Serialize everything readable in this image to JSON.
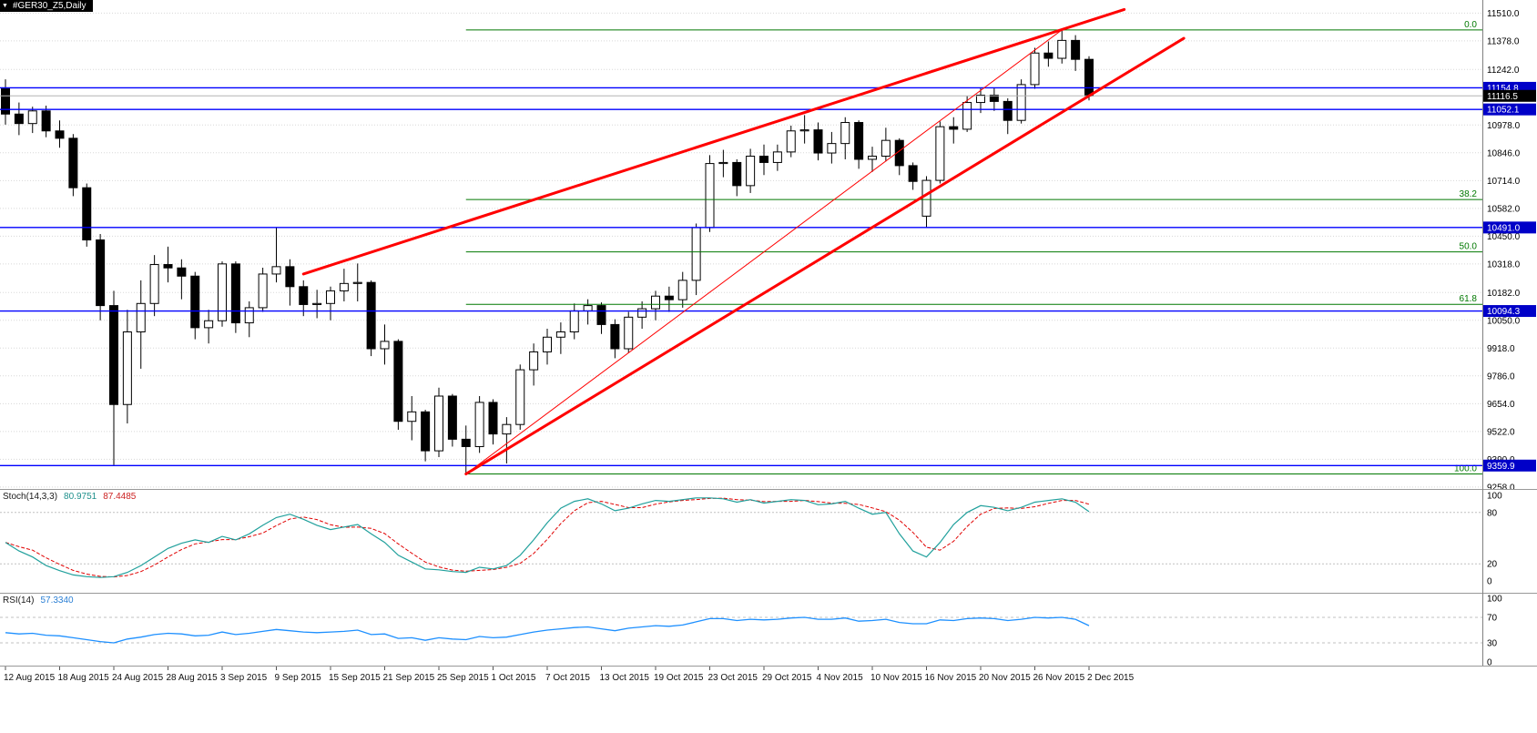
{
  "window": {
    "dropdown_glyph": "▼",
    "title": "#GER30_Z5,Daily"
  },
  "chart_data": {
    "type": "candlestick",
    "symbol": "#GER30_Z5",
    "timeframe": "Daily",
    "price_range_visible": {
      "top": 11572,
      "bottom": 9253
    },
    "colors": {
      "grid": "#d8d8d8",
      "candle_up": "#ffffff",
      "candle_down": "#000000",
      "candle_outline": "#000000",
      "hline": "#0000ff",
      "fib": "#007800",
      "trend": "#ff0000",
      "bid_line": "#b4b4b4",
      "box_line": "#0000c8",
      "box_bid": "#000000",
      "stoch_main": "#20a09c",
      "stoch_signal": "#e00000",
      "rsi_line": "#1e90ff",
      "level": "#c0c0c0"
    },
    "price_axis": {
      "grid_levels": [
        11510.0,
        11378.0,
        11242.0,
        10978.0,
        10846.0,
        10714.0,
        10582.0,
        10450.0,
        10318.0,
        10182.0,
        10050.0,
        9918.0,
        9786.0,
        9654.0,
        9522.0,
        9390.0,
        9258.0
      ],
      "bid": 11116.5,
      "line_boxes": [
        {
          "price": 11154.8,
          "label": "11154.8",
          "type": "line"
        },
        {
          "price": 11116.5,
          "label": "11116.5",
          "type": "bid"
        },
        {
          "price": 11052.1,
          "label": "11052.1",
          "type": "line"
        },
        {
          "price": 10491.0,
          "label": "10491.0",
          "type": "line"
        },
        {
          "price": 10094.3,
          "label": "10094.3",
          "type": "line"
        },
        {
          "price": 9359.9,
          "label": "9359.9",
          "type": "line"
        }
      ]
    },
    "horizontal_lines": [
      11154.8,
      11052.1,
      10491.0,
      10094.3,
      9359.9
    ],
    "fibonacci": {
      "start_bar": 34,
      "levels": [
        {
          "label": "0.0",
          "price": 11430
        },
        {
          "label": "38.2",
          "price": 10624
        },
        {
          "label": "50.0",
          "price": 10375
        },
        {
          "label": "61.8",
          "price": 10126
        },
        {
          "label": "100.0",
          "price": 9320
        }
      ]
    },
    "trend_lines": [
      {
        "from_bar": 22,
        "from_price": 10270,
        "to_bar": 82.6,
        "to_price": 11527,
        "width": 3
      },
      {
        "from_bar": 34,
        "from_price": 9320,
        "to_bar": 87,
        "to_price": 11390,
        "width": 3
      },
      {
        "from_bar": 34,
        "from_price": 9320,
        "to_bar": 78,
        "to_price": 11430,
        "width": 1
      }
    ],
    "date_ticks": {
      "every": 4,
      "labels": [
        "12 Aug 2015",
        "18 Aug 2015",
        "24 Aug 2015",
        "28 Aug 2015",
        "3 Sep 2015",
        "9 Sep 2015",
        "15 Sep 2015",
        "21 Sep 2015",
        "25 Sep 2015",
        "1 Oct 2015",
        "7 Oct 2015",
        "13 Oct 2015",
        "19 Oct 2015",
        "23 Oct 2015",
        "29 Oct 2015",
        "4 Nov 2015",
        "10 Nov 2015",
        "16 Nov 2015",
        "20 Nov 2015",
        "26 Nov 2015",
        "2 Dec 2015"
      ]
    },
    "candles": [
      [
        11150,
        11195,
        10980,
        11030
      ],
      [
        11030,
        11085,
        10930,
        10985
      ],
      [
        10985,
        11065,
        10940,
        11045
      ],
      [
        11045,
        11070,
        10920,
        10950
      ],
      [
        10950,
        11000,
        10870,
        10915
      ],
      [
        10915,
        10935,
        10640,
        10680
      ],
      [
        10680,
        10700,
        10400,
        10432
      ],
      [
        10432,
        10460,
        10050,
        10120
      ],
      [
        10120,
        10190,
        9362,
        9650
      ],
      [
        9650,
        10100,
        9560,
        9995
      ],
      [
        9995,
        10240,
        9820,
        10130
      ],
      [
        10130,
        10360,
        10070,
        10315
      ],
      [
        10315,
        10400,
        10230,
        10299
      ],
      [
        10299,
        10340,
        10150,
        10260
      ],
      [
        10260,
        10280,
        9960,
        10015
      ],
      [
        10015,
        10100,
        9940,
        10048
      ],
      [
        10048,
        10330,
        10020,
        10318
      ],
      [
        10318,
        10330,
        9990,
        10038
      ],
      [
        10038,
        10140,
        9970,
        10110
      ],
      [
        10110,
        10300,
        10090,
        10270
      ],
      [
        10270,
        10490,
        10230,
        10305
      ],
      [
        10305,
        10340,
        10120,
        10210
      ],
      [
        10210,
        10240,
        10070,
        10125
      ],
      [
        10125,
        10195,
        10060,
        10130
      ],
      [
        10130,
        10210,
        10050,
        10190
      ],
      [
        10190,
        10295,
        10140,
        10225
      ],
      [
        10225,
        10320,
        10140,
        10230
      ],
      [
        10230,
        10240,
        9880,
        9915
      ],
      [
        9915,
        10030,
        9840,
        9950
      ],
      [
        9950,
        9960,
        9530,
        9570
      ],
      [
        9570,
        9690,
        9480,
        9615
      ],
      [
        9615,
        9625,
        9380,
        9430
      ],
      [
        9430,
        9730,
        9400,
        9690
      ],
      [
        9690,
        9700,
        9450,
        9485
      ],
      [
        9485,
        9550,
        9320,
        9450
      ],
      [
        9450,
        9690,
        9420,
        9660
      ],
      [
        9660,
        9675,
        9460,
        9510
      ],
      [
        9510,
        9590,
        9370,
        9555
      ],
      [
        9555,
        9840,
        9530,
        9815
      ],
      [
        9815,
        9940,
        9740,
        9900
      ],
      [
        9900,
        10010,
        9840,
        9970
      ],
      [
        9970,
        10040,
        9890,
        9995
      ],
      [
        9995,
        10130,
        9960,
        10095
      ],
      [
        10095,
        10150,
        10030,
        10120
      ],
      [
        10120,
        10135,
        9985,
        10030
      ],
      [
        10030,
        10055,
        9870,
        9915
      ],
      [
        9915,
        10090,
        9895,
        10065
      ],
      [
        10065,
        10140,
        10010,
        10105
      ],
      [
        10105,
        10190,
        10050,
        10165
      ],
      [
        10165,
        10210,
        10090,
        10148
      ],
      [
        10148,
        10280,
        10110,
        10240
      ],
      [
        10240,
        10510,
        10170,
        10490
      ],
      [
        10490,
        10835,
        10470,
        10795
      ],
      [
        10795,
        10860,
        10730,
        10800
      ],
      [
        10800,
        10815,
        10640,
        10690
      ],
      [
        10690,
        10865,
        10655,
        10830
      ],
      [
        10830,
        10885,
        10740,
        10800
      ],
      [
        10800,
        10885,
        10760,
        10850
      ],
      [
        10850,
        10975,
        10825,
        10950
      ],
      [
        10950,
        11025,
        10890,
        10955
      ],
      [
        10955,
        10990,
        10810,
        10845
      ],
      [
        10845,
        10945,
        10795,
        10890
      ],
      [
        10890,
        11015,
        10815,
        10990
      ],
      [
        10990,
        11000,
        10770,
        10815
      ],
      [
        10815,
        10875,
        10755,
        10830
      ],
      [
        10830,
        10965,
        10805,
        10905
      ],
      [
        10905,
        10915,
        10740,
        10785
      ],
      [
        10785,
        10800,
        10670,
        10710
      ],
      [
        10545,
        10735,
        10492,
        10715
      ],
      [
        10715,
        10995,
        10700,
        10970
      ],
      [
        10970,
        11015,
        10890,
        10958
      ],
      [
        10958,
        11115,
        10945,
        11085
      ],
      [
        11085,
        11155,
        11035,
        11120
      ],
      [
        11120,
        11155,
        11045,
        11090
      ],
      [
        11090,
        11105,
        10935,
        11000
      ],
      [
        11000,
        11195,
        10985,
        11170
      ],
      [
        11170,
        11345,
        11150,
        11320
      ],
      [
        11320,
        11375,
        11255,
        11295
      ],
      [
        11295,
        11430,
        11270,
        11380
      ],
      [
        11380,
        11405,
        11235,
        11290
      ],
      [
        11290,
        11305,
        11095,
        11116.5
      ]
    ],
    "indicators": {
      "stochastic": {
        "label": "Stoch(14,3,3)",
        "k_value": "80.9751",
        "d_value": "87.4485",
        "levels": [
          20,
          80
        ],
        "axis_labels": [
          "100",
          "80",
          "20",
          "0"
        ],
        "k_series": [
          45,
          35,
          28,
          18,
          12,
          7,
          5,
          4,
          5,
          10,
          18,
          28,
          38,
          44,
          48,
          45,
          52,
          48,
          55,
          65,
          74,
          78,
          72,
          65,
          60,
          63,
          66,
          55,
          45,
          30,
          22,
          14,
          13,
          11,
          10,
          16,
          14,
          18,
          30,
          48,
          68,
          85,
          93,
          96,
          90,
          82,
          85,
          90,
          94,
          93,
          95,
          97,
          97,
          96,
          92,
          95,
          91,
          93,
          95,
          94,
          89,
          90,
          93,
          85,
          78,
          80,
          55,
          35,
          28,
          45,
          66,
          80,
          88,
          86,
          82,
          86,
          92,
          94,
          96,
          92,
          81
        ]
      },
      "rsi": {
        "label": "RSI(14)",
        "value": "57.3340",
        "levels": [
          30,
          70
        ],
        "axis_labels": [
          "100",
          "70",
          "30",
          "0"
        ],
        "series": [
          46,
          44,
          45,
          42,
          41,
          38,
          35,
          32,
          30,
          36,
          39,
          43,
          45,
          44,
          41,
          42,
          47,
          43,
          45,
          48,
          51,
          49,
          47,
          46,
          47,
          48,
          50,
          43,
          44,
          37,
          38,
          34,
          38,
          36,
          35,
          40,
          38,
          39,
          43,
          47,
          50,
          52,
          54,
          55,
          52,
          49,
          53,
          55,
          57,
          56,
          58,
          63,
          68,
          68,
          65,
          67,
          66,
          67,
          69,
          70,
          67,
          67,
          69,
          64,
          65,
          67,
          62,
          60,
          60,
          66,
          65,
          68,
          69,
          68,
          65,
          67,
          70,
          69,
          70,
          67,
          57
        ]
      }
    }
  }
}
